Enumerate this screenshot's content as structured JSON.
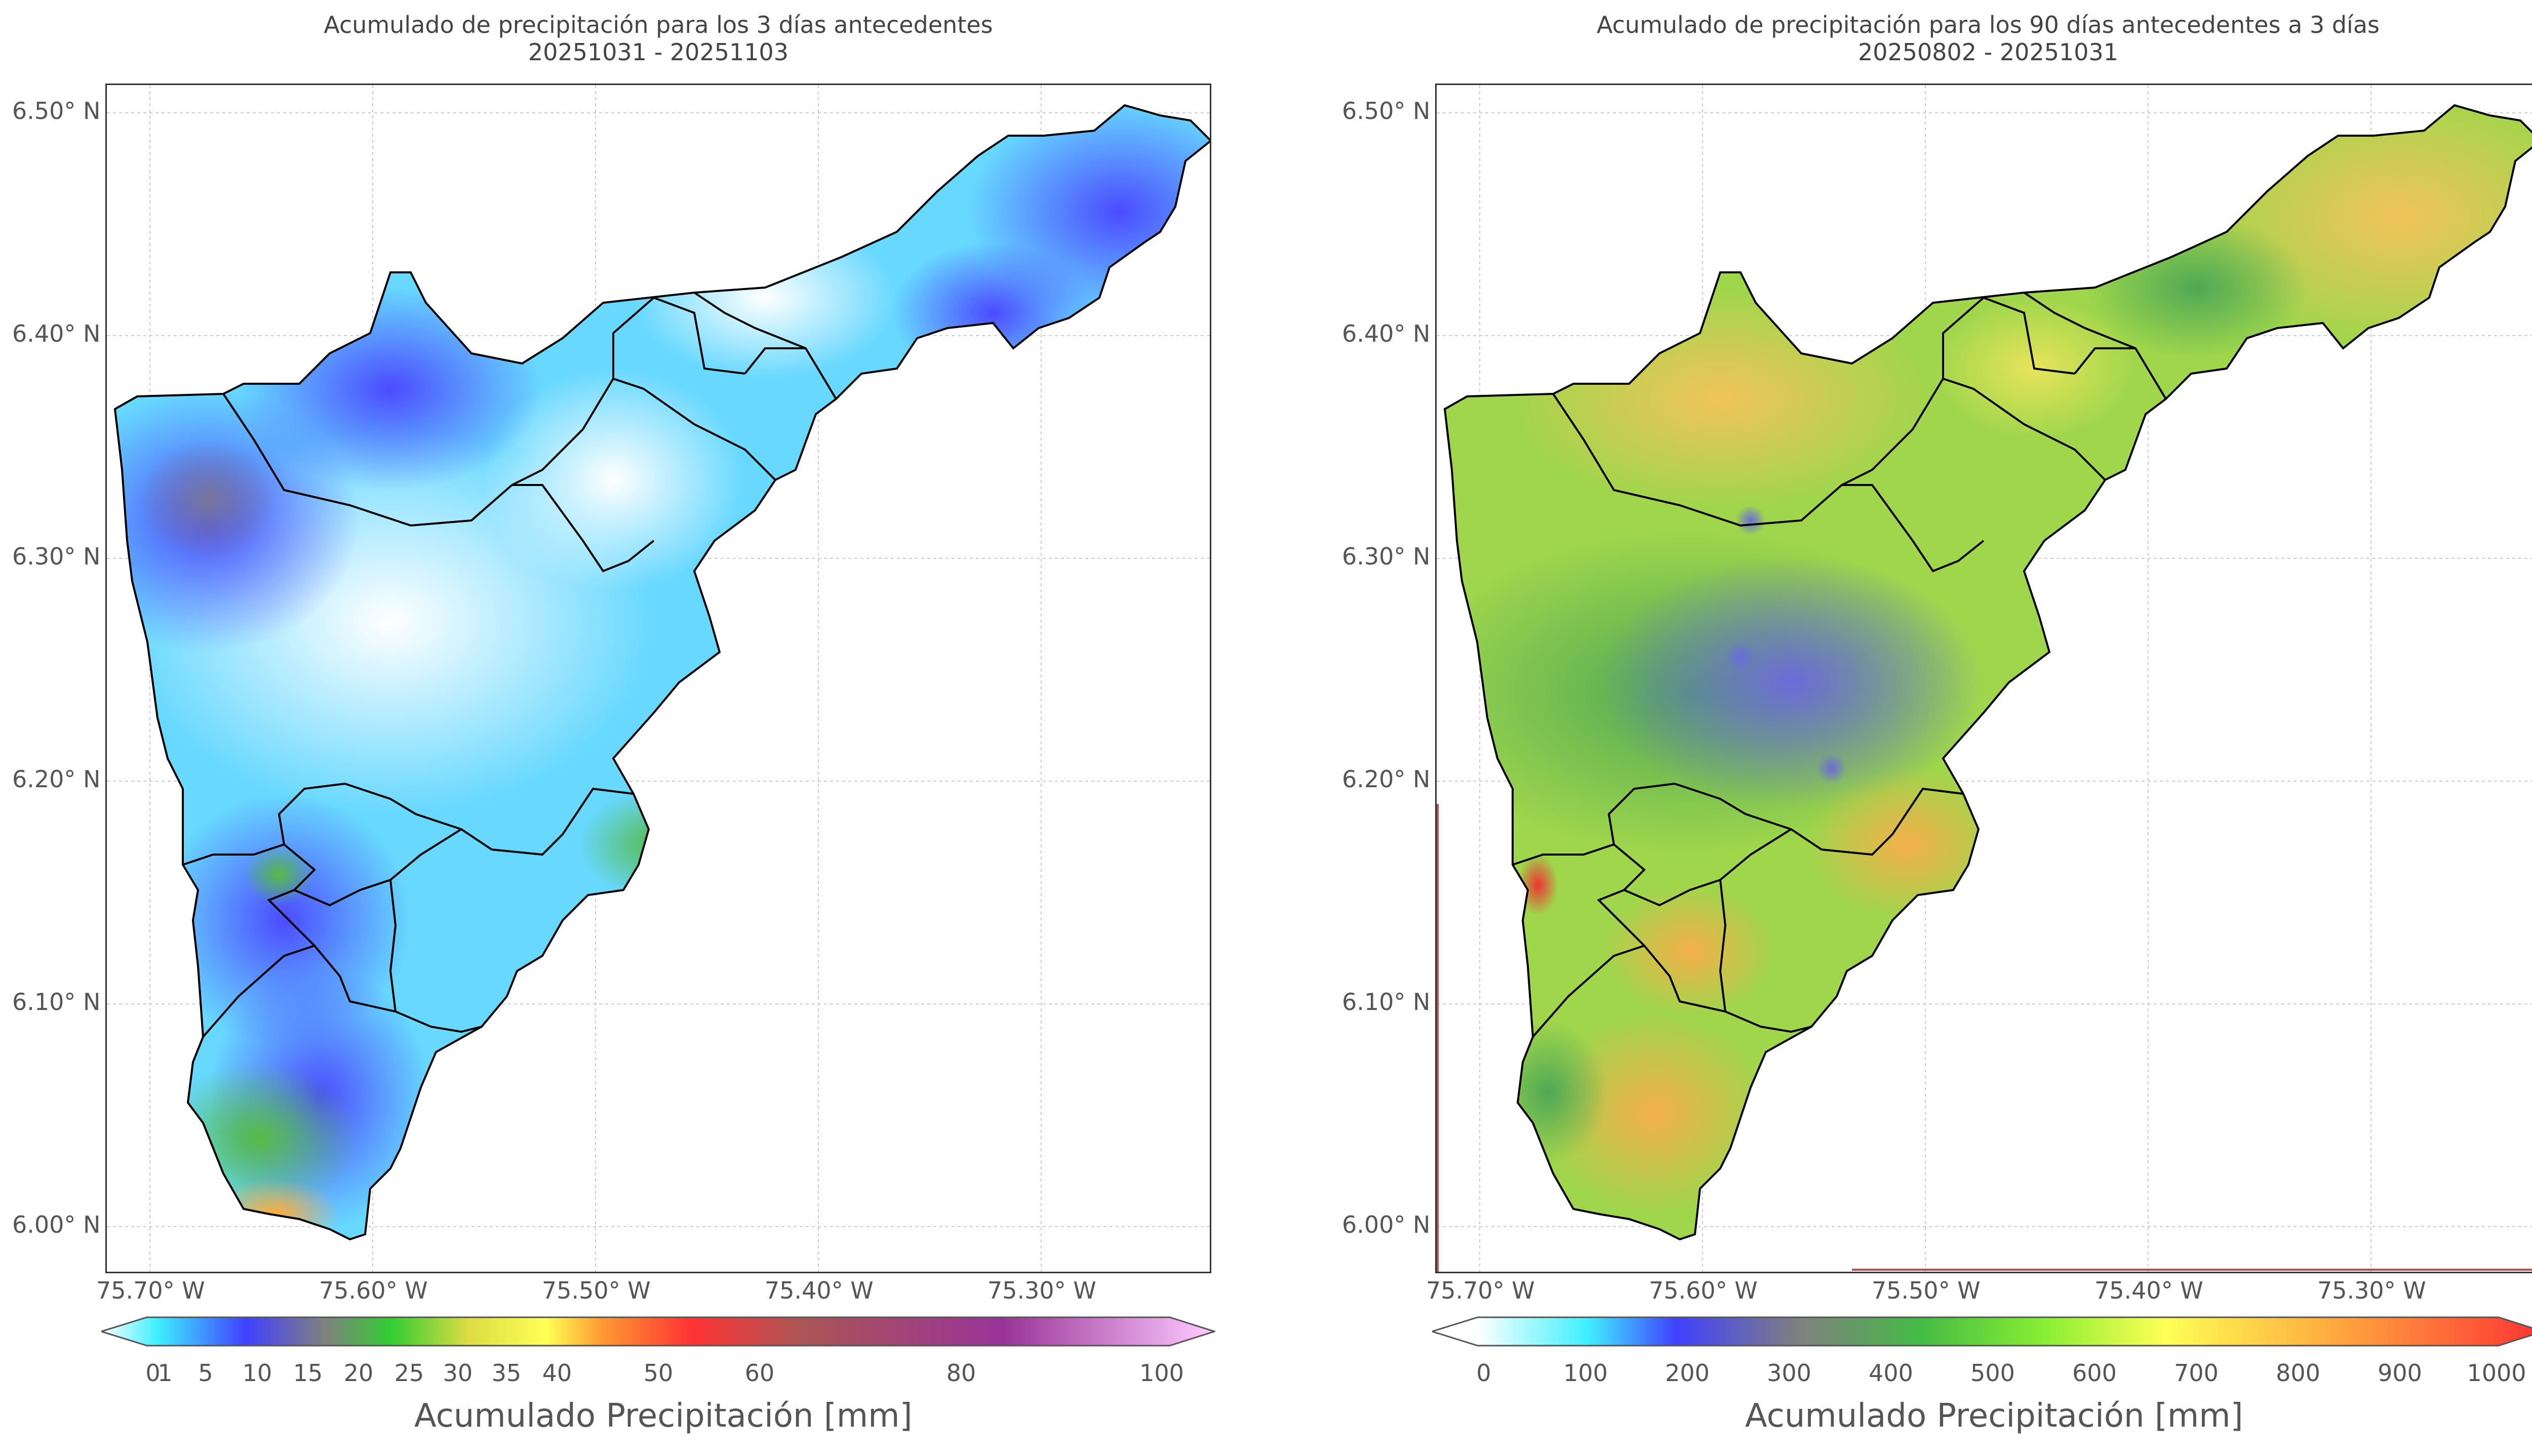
{
  "panels": [
    {
      "title_line1": "Acumulado de precipitación para los 3 días antecedentes",
      "title_line2": "20251031 - 20251103",
      "colorbar_label": "Acumulado Precipitación [mm]",
      "colorbar_ticks": [
        "0",
        "1",
        "5",
        "10",
        "15",
        "20",
        "25",
        "30",
        "35",
        "40",
        "50",
        "60",
        "80",
        "100"
      ]
    },
    {
      "title_line1": "Acumulado de precipitación para los 90 días antecedentes a 3 días",
      "title_line2": "20250802 - 20251031",
      "colorbar_label": "Acumulado Precipitación [mm]",
      "colorbar_ticks": [
        "0",
        "100",
        "200",
        "300",
        "400",
        "500",
        "600",
        "700",
        "800",
        "900",
        "1000"
      ]
    }
  ],
  "axes": {
    "lat_ticks": [
      "6.50° N",
      "6.40° N",
      "6.30° N",
      "6.20° N",
      "6.10° N",
      "6.00° N"
    ],
    "lon_ticks": [
      "75.70° W",
      "75.60° W",
      "75.50° W",
      "75.40° W",
      "75.30° W"
    ]
  },
  "colors": {
    "left_scale": [
      "#ffffff",
      "#3ff0ff",
      "#4040ff",
      "#808080",
      "#33cc33",
      "#ffff55",
      "#ff9933",
      "#ff3333",
      "#993399",
      "#ffccff"
    ],
    "right_scale": [
      "#ffffff",
      "#3ff0ff",
      "#4040ff",
      "#808080",
      "#33cc33",
      "#66ee33",
      "#ffff55",
      "#ffb040",
      "#ff3333"
    ],
    "boundary": "#000000"
  }
}
